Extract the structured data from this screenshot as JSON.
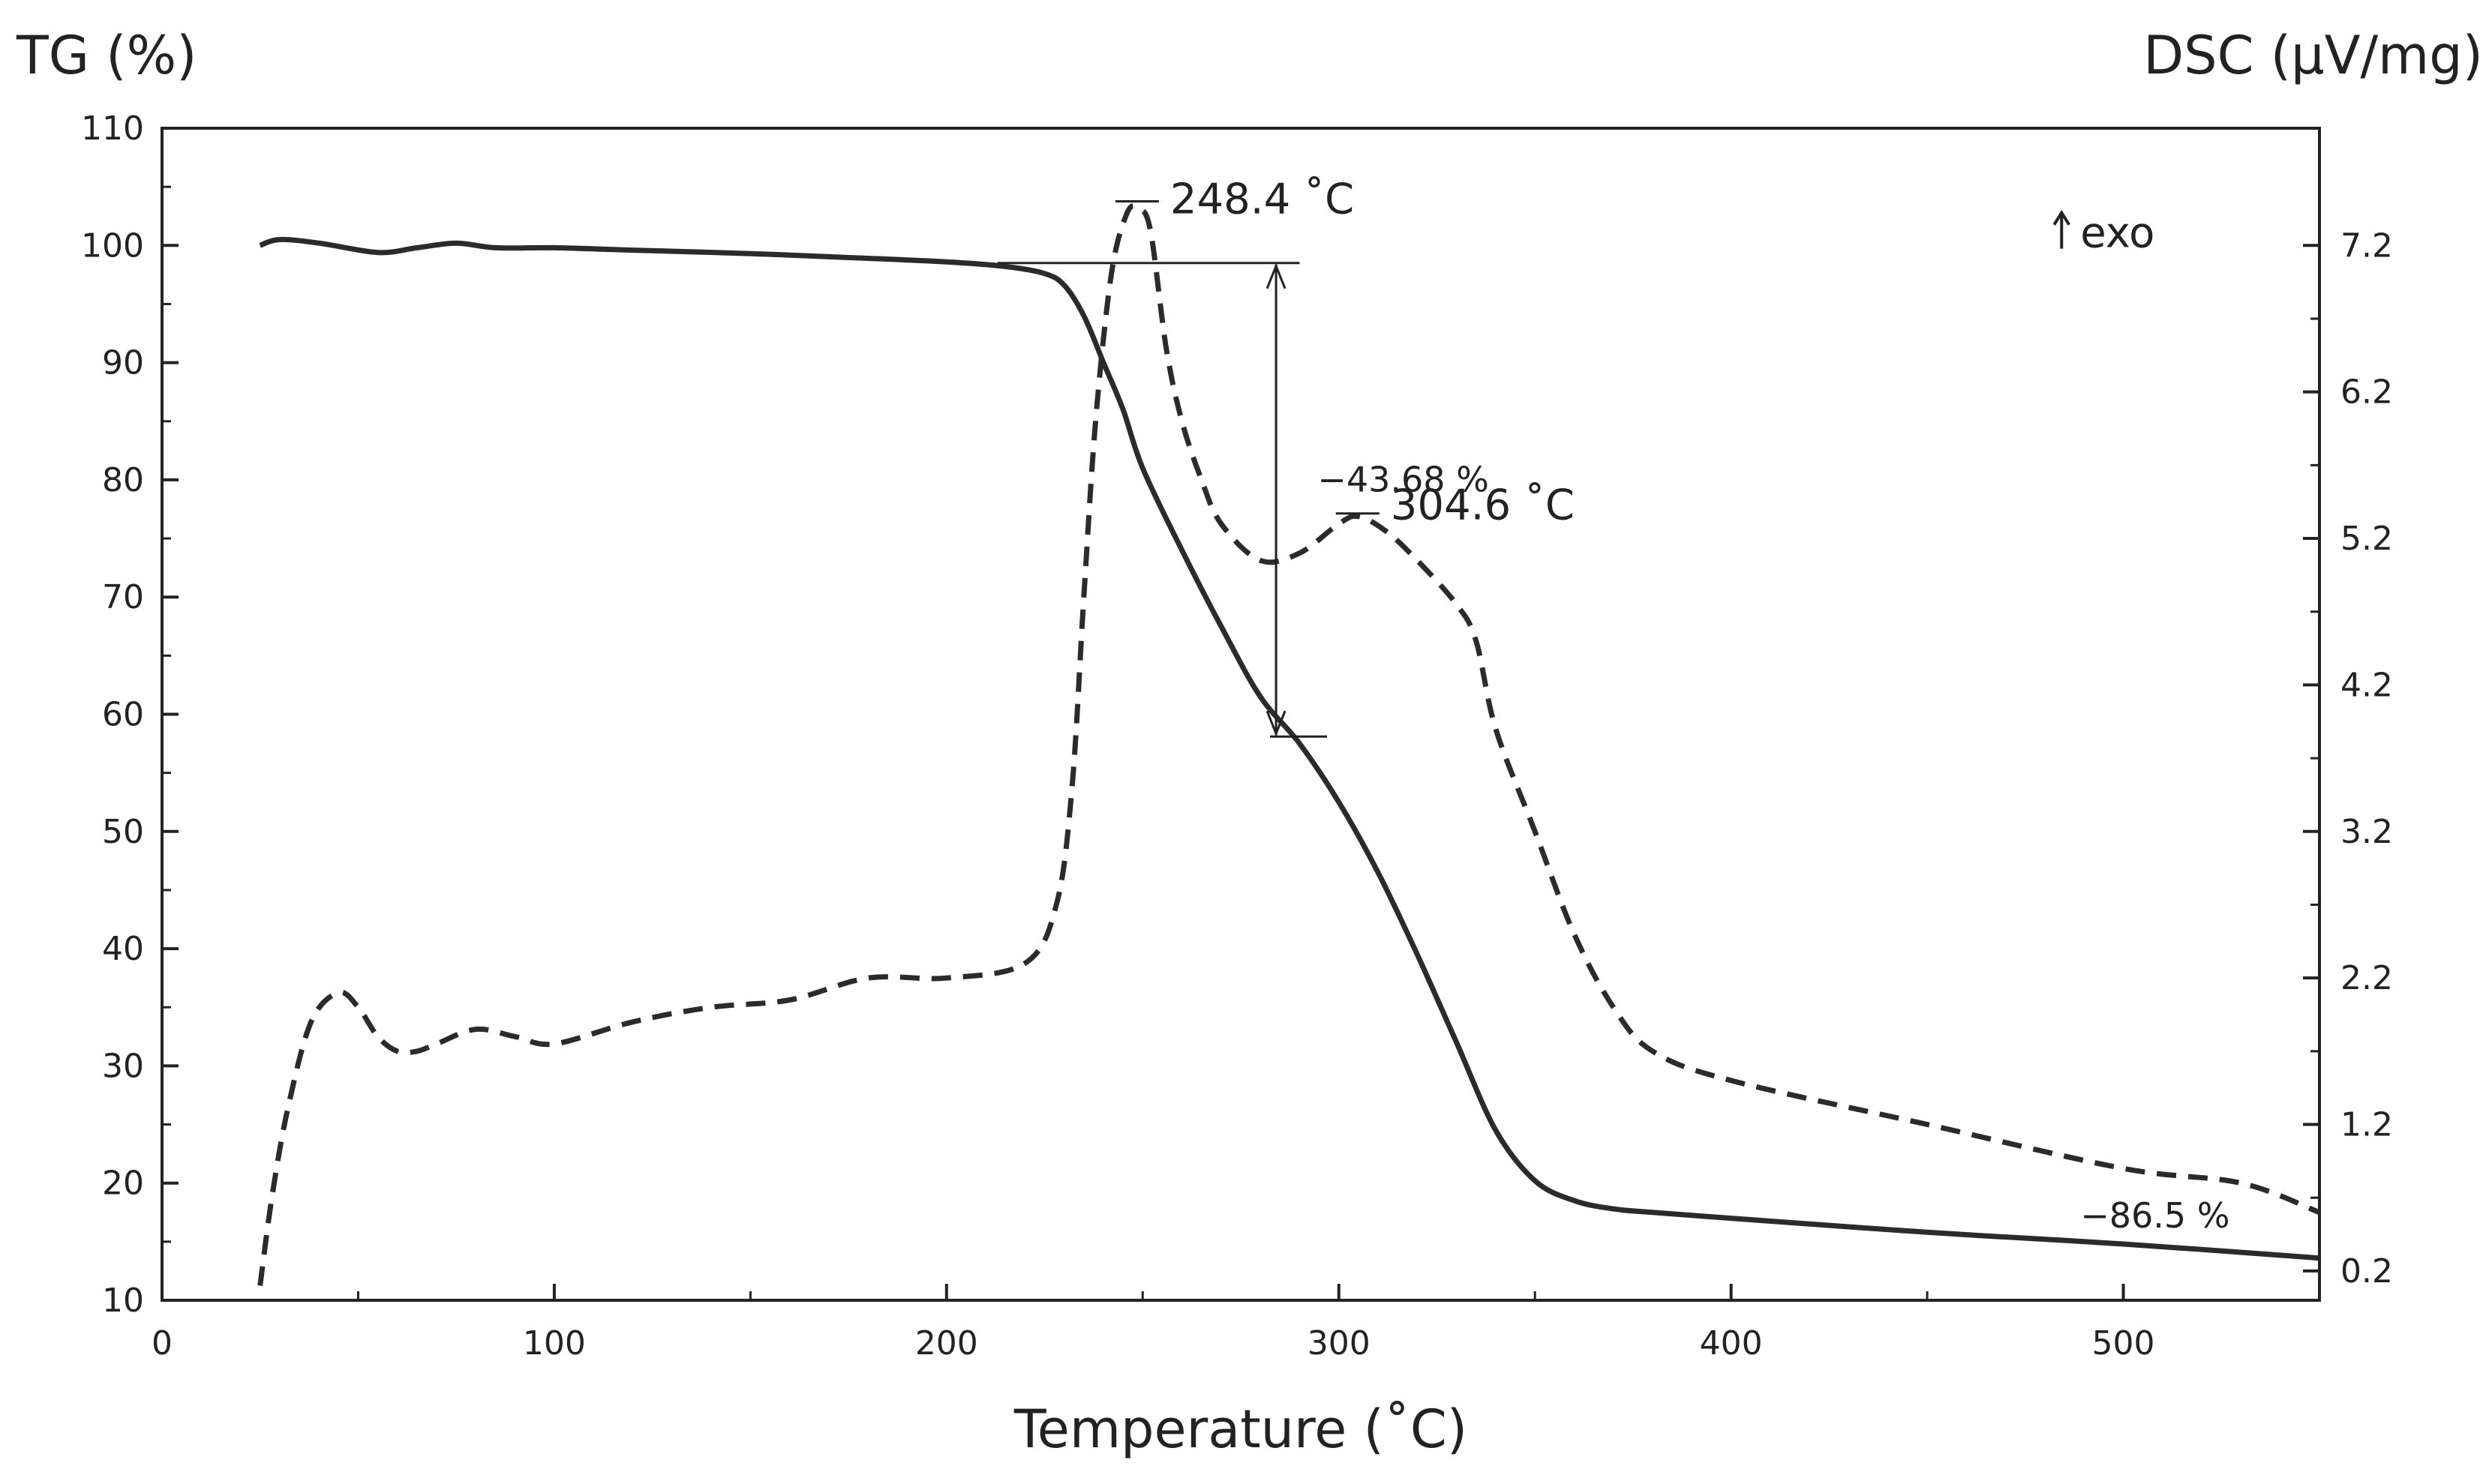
{
  "chart_data": {
    "type": "line",
    "title": "",
    "xlabel": "Temperature (˚C)",
    "ylabel_left": "TG (%)",
    "ylabel_right": "DSC  (μV/mg)",
    "xlim": [
      0,
      550
    ],
    "ylim_left": [
      10,
      110
    ],
    "ylim_right": [
      0.0,
      8.0
    ],
    "x_ticks": [
      0,
      100,
      200,
      300,
      400,
      500
    ],
    "y_left_ticks": [
      10,
      20,
      30,
      40,
      50,
      60,
      70,
      80,
      90,
      100,
      110
    ],
    "y_right_ticks": [
      {
        "value": 0.2,
        "label": "0.2"
      },
      {
        "value": 1.2,
        "label": "1.2"
      },
      {
        "value": 2.2,
        "label": "2.2"
      },
      {
        "value": 3.2,
        "label": "3.2"
      },
      {
        "value": 4.2,
        "label": "4.2"
      },
      {
        "value": 5.2,
        "label": "5.2"
      },
      {
        "value": 6.2,
        "label": "6.2"
      },
      {
        "value": 7.2,
        "label": "7.2"
      }
    ],
    "grid": false,
    "series": [
      {
        "name": "TG",
        "axis": "left",
        "style": "solid",
        "color": "#2b2b2b",
        "x": [
          25,
          30,
          40,
          55,
          65,
          75,
          85,
          100,
          120,
          150,
          180,
          200,
          215,
          225,
          230,
          235,
          240,
          245,
          250,
          260,
          270,
          280,
          290,
          300,
          310,
          320,
          330,
          340,
          350,
          360,
          370,
          380,
          400,
          450,
          500,
          550
        ],
        "y": [
          100,
          100.5,
          100.2,
          99.4,
          99.8,
          100.2,
          99.8,
          99.8,
          99.6,
          99.3,
          98.9,
          98.6,
          98.2,
          97.6,
          96.6,
          94,
          90,
          86,
          81,
          74,
          67.5,
          61.5,
          57.5,
          52.5,
          46.5,
          39.5,
          32,
          24.5,
          20.2,
          18.5,
          17.8,
          17.5,
          17,
          15.8,
          14.8,
          13.6
        ]
      },
      {
        "name": "DSC",
        "axis": "right",
        "style": "dashed",
        "color": "#2b2b2b",
        "x": [
          25,
          28,
          32,
          38,
          45,
          50,
          55,
          60,
          65,
          70,
          80,
          90,
          100,
          120,
          140,
          160,
          180,
          200,
          220,
          228,
          232,
          235,
          238,
          242,
          246,
          249,
          252,
          256,
          260,
          265,
          270,
          280,
          290,
          300,
          305,
          312,
          320,
          330,
          335,
          340,
          350,
          360,
          370,
          380,
          400,
          450,
          500,
          530,
          550
        ],
        "y": [
          0.1,
          0.7,
          1.3,
          1.9,
          2.1,
          2.0,
          1.8,
          1.7,
          1.7,
          1.75,
          1.85,
          1.8,
          1.75,
          1.9,
          2.0,
          2.05,
          2.2,
          2.2,
          2.3,
          2.7,
          3.5,
          4.8,
          6.0,
          7.0,
          7.42,
          7.45,
          7.3,
          6.5,
          6.0,
          5.6,
          5.3,
          5.05,
          5.1,
          5.3,
          5.35,
          5.25,
          5.05,
          4.75,
          4.5,
          3.9,
          3.2,
          2.5,
          2.0,
          1.7,
          1.5,
          1.2,
          0.9,
          0.8,
          0.6
        ]
      }
    ],
    "annotations": [
      {
        "text": "248.4 ˚C",
        "x": 248.4,
        "y_axis": "right",
        "y": 7.45
      },
      {
        "text": "304.6 ˚C",
        "x": 304.6,
        "y_axis": "right",
        "y": 5.35
      },
      {
        "text": "−43.68 %",
        "x": 285,
        "y_axis": "left",
        "y": 79
      },
      {
        "text": "−86.5 %",
        "x": 510,
        "y_axis": "left",
        "y": 18
      },
      {
        "text": "exo",
        "x": 490,
        "y_axis": "left",
        "y": 101
      }
    ],
    "mass_loss_bracket": {
      "x": 284,
      "top": 98.5,
      "bottom": 58.1
    }
  }
}
